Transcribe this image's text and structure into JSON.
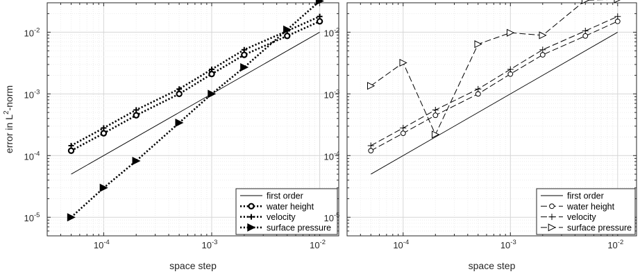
{
  "chart_data": [
    {
      "type": "line",
      "panel": "left",
      "title": "",
      "xlabel": "space step",
      "ylabel": "error in L2-norm",
      "xscale": "log",
      "yscale": "log",
      "xlim": [
        3e-05,
        0.015
      ],
      "ylim": [
        5e-06,
        0.03
      ],
      "grid": true,
      "minor_grid": true,
      "legend_position": "bottom-right",
      "x": [
        5e-05,
        0.0001,
        0.0002,
        0.0005,
        0.001,
        0.002,
        0.005,
        0.01
      ],
      "series": [
        {
          "name": "first order",
          "style": "solid",
          "marker": "none",
          "x": [
            5e-05,
            0.01
          ],
          "values": [
            5e-05,
            0.01
          ]
        },
        {
          "name": "water height",
          "style": "dotted",
          "marker": "o",
          "values": [
            0.00012,
            0.00023,
            0.00045,
            0.001,
            0.0021,
            0.0043,
            0.0087,
            0.015
          ]
        },
        {
          "name": "velocity",
          "style": "dotted",
          "marker": "+",
          "values": [
            0.000145,
            0.00028,
            0.00055,
            0.0012,
            0.0025,
            0.0052,
            0.0105,
            0.018
          ]
        },
        {
          "name": "surface pressure",
          "style": "dotted",
          "marker": ">",
          "values": [
            1e-05,
            3e-05,
            8.2e-05,
            0.00034,
            0.001,
            0.0027,
            0.011,
            0.032
          ]
        }
      ]
    },
    {
      "type": "line",
      "panel": "right",
      "title": "",
      "xlabel": "space step",
      "ylabel": "",
      "xscale": "log",
      "yscale": "log",
      "xlim": [
        3e-05,
        0.015
      ],
      "ylim": [
        5e-06,
        0.03
      ],
      "grid": true,
      "minor_grid": true,
      "legend_position": "bottom-right",
      "x": [
        5e-05,
        0.0001,
        0.0002,
        0.0005,
        0.001,
        0.002,
        0.005,
        0.01
      ],
      "series": [
        {
          "name": "first order",
          "style": "solid",
          "marker": "none",
          "x": [
            5e-05,
            0.01
          ],
          "values": [
            5e-05,
            0.01
          ]
        },
        {
          "name": "water height",
          "style": "dashed",
          "marker": "o",
          "values": [
            0.00012,
            0.00023,
            0.00045,
            0.001,
            0.0021,
            0.0043,
            0.0087,
            0.015
          ]
        },
        {
          "name": "velocity",
          "style": "dashed",
          "marker": "+",
          "values": [
            0.000145,
            0.00028,
            0.00055,
            0.0012,
            0.0025,
            0.0052,
            0.0105,
            0.018
          ]
        },
        {
          "name": "surface pressure",
          "style": "dashed",
          "marker": ">",
          "values": [
            0.00135,
            0.0032,
            0.00022,
            0.0064,
            0.0098,
            0.0089,
            0.033,
            0.034
          ]
        }
      ]
    }
  ],
  "tick_labels": {
    "x": [
      {
        "base": "10",
        "exp": "-4",
        "value": 0.0001
      },
      {
        "base": "10",
        "exp": "-3",
        "value": 0.001
      },
      {
        "base": "10",
        "exp": "-2",
        "value": 0.01
      }
    ],
    "y": [
      {
        "base": "10",
        "exp": "-5",
        "value": 1e-05
      },
      {
        "base": "10",
        "exp": "-4",
        "value": 0.0001
      },
      {
        "base": "10",
        "exp": "-3",
        "value": 0.001
      },
      {
        "base": "10",
        "exp": "-2",
        "value": 0.01
      }
    ]
  },
  "ylabel_parts": {
    "text": "error in L",
    "sup": "2",
    "suffix": "-norm"
  }
}
